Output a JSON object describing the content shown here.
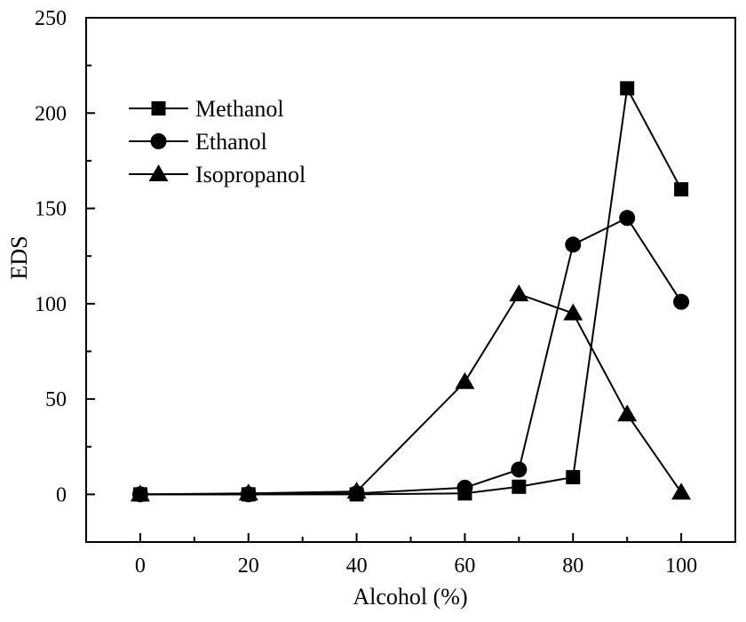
{
  "chart_data": {
    "type": "line",
    "title": "",
    "xlabel": "Alcohol (%)",
    "ylabel": "EDS",
    "xlim": [
      -10,
      110
    ],
    "ylim": [
      -25,
      250
    ],
    "xticks": [
      0,
      20,
      40,
      60,
      80,
      100
    ],
    "yticks": [
      0,
      50,
      100,
      150,
      200,
      250
    ],
    "grid": false,
    "legend_position": "top-left",
    "x": [
      0,
      20,
      40,
      60,
      70,
      80,
      90,
      100
    ],
    "series": [
      {
        "name": "Methanol",
        "marker": "square",
        "values": [
          0,
          0,
          0,
          0.5,
          4,
          9,
          213,
          160
        ]
      },
      {
        "name": "Ethanol",
        "marker": "circle",
        "values": [
          0,
          0,
          0.5,
          3.5,
          13,
          131,
          145,
          101
        ]
      },
      {
        "name": "Isopropanol",
        "marker": "triangle",
        "values": [
          0,
          0.5,
          1.5,
          59,
          105,
          95,
          42,
          1
        ]
      }
    ]
  }
}
